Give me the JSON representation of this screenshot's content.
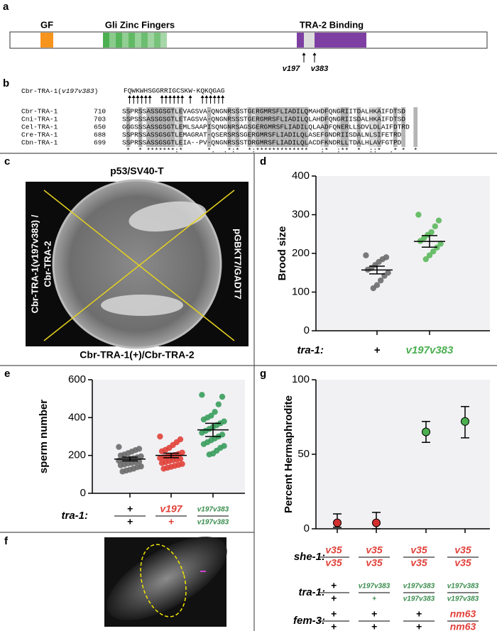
{
  "panel_labels": [
    "a",
    "b",
    "c",
    "d",
    "e",
    "f",
    "g"
  ],
  "domain_diagram": {
    "domains": [
      {
        "label": "GF",
        "color": "#f7941d"
      },
      {
        "label": "Gli Zinc Fingers",
        "color": "#4caf50"
      },
      {
        "label": "TRA-2 Binding",
        "color": "#7e3fa3"
      }
    ],
    "alleles": [
      "v197",
      "v383"
    ]
  },
  "alignment": {
    "mutant": {
      "prefix": "Cbr-TRA-1(",
      "allele": "v197v383",
      "suffix": ")",
      "sequence": "FQWKWHSGGRRIGCSKW-KQKQGAG"
    },
    "rows": [
      {
        "name": "Cbr-TRA-1",
        "start": "710",
        "sequence": "SSPRSSASSGSGTLEVAGSVA-QNGNRSSSTGERGMRSFLIADILQMAHDFQNGRIITDALHKAIFDTSD"
      },
      {
        "name": "Cni-TRA-1",
        "start": "703",
        "sequence": "SSPSSSASSGSGTLETAGSVA-QNGNRSSSTGERGMRSFLIADILQLAHDFQNGRIISDALHKAIFDTSD"
      },
      {
        "name": "Cel-TRA-1",
        "start": "650",
        "sequence": "GGGSSSASSGSGTLEMLSAAPISQNGNRSAGSGERGMRSFLIADILQLAADFQNERLLSDVLDLAIFDTRD"
      },
      {
        "name": "Cre-TRA-1",
        "start": "688",
        "sequence": "SSPRSSASSGSGTLEMAGRAT-QSERSRSSGERGMRSFLIADILQLASEFGNDRIISDALNLSIFETRD"
      },
      {
        "name": "Cbn-TRA-1",
        "start": "699",
        "sequence": "SSPRSSASSGSGTLEIA--PV-QNGNRSSSTDRGMRSFLIADILQLACDFKNDRLLTDALHLAVFGTPD"
      }
    ],
    "consensus": " *  * *******:*      *.  .*:*  *:*************   :*  :**  *  ::*  .* *  *"
  },
  "plate": {
    "top": "p53/SV40-T",
    "bottom": "Cbr-TRA-1(+)/Cbr-TRA-2",
    "left": [
      "Cbr-TRA-1(v197v383) /",
      "Cbr-TRA-2"
    ],
    "right": "pGBKT7/GADT7"
  },
  "chart_data": [
    {
      "type": "dotplot",
      "ylabel": "Brood size",
      "ylim": [
        0,
        400
      ],
      "yticks": [
        0,
        100,
        200,
        300,
        400
      ],
      "category_title": "tra-1:",
      "categories": [
        "+",
        "v197v383"
      ],
      "category_colors": [
        "#000000",
        "#4caf50"
      ],
      "groups": [
        {
          "color": "#6b6b6b",
          "values": [
            195,
            190,
            185,
            178,
            170,
            162,
            158,
            150,
            142,
            130,
            118,
            110
          ],
          "mean": 157,
          "error": 10
        },
        {
          "color": "#5cb85c",
          "values": [
            300,
            285,
            270,
            255,
            248,
            240,
            232,
            225,
            215,
            205,
            195,
            185
          ],
          "mean": 231,
          "error": 15
        }
      ]
    },
    {
      "type": "dotplot",
      "ylabel": "sperm number",
      "ylim": [
        0,
        600
      ],
      "yticks": [
        0,
        200,
        400,
        600
      ],
      "genotype_rows": [
        {
          "label": "tra-1:",
          "alleles": [
            {
              "top": "+",
              "bottom": "+",
              "color": "#000000"
            },
            {
              "top": "v197",
              "bottom": "+",
              "color": "#e0413a"
            },
            {
              "top": "v197v383",
              "bottom": "v197v383",
              "color": "#3a8d4d"
            }
          ]
        }
      ],
      "groups": [
        {
          "color": "#6b6b6b",
          "values": [
            245,
            235,
            228,
            220,
            212,
            205,
            200,
            195,
            190,
            185,
            182,
            178,
            175,
            172,
            168,
            165,
            160,
            158,
            152,
            148,
            142,
            138,
            130,
            125,
            120,
            115
          ],
          "mean": 181,
          "error": 10
        },
        {
          "color": "#e0413a",
          "values": [
            300,
            285,
            270,
            255,
            240,
            230,
            222,
            215,
            208,
            202,
            198,
            195,
            190,
            186,
            182,
            178,
            175,
            170,
            165,
            160,
            155,
            150,
            145,
            140,
            135,
            130
          ],
          "mean": 200,
          "error": 12
        },
        {
          "color": "#3a9d5d",
          "values": [
            520,
            510,
            470,
            430,
            410,
            400,
            390,
            380,
            370,
            360,
            350,
            340,
            330,
            320,
            310,
            300,
            290,
            280,
            270,
            260,
            250,
            240,
            225,
            210,
            205
          ],
          "mean": 335,
          "error": 35
        }
      ]
    },
    {
      "type": "errorpoint",
      "ylabel": "Percent Hermaphrodite",
      "ylim": [
        0,
        100
      ],
      "yticks": [
        0,
        50,
        100
      ],
      "values": [
        4,
        4,
        65,
        72
      ],
      "error_low": [
        1,
        0,
        58,
        61
      ],
      "error_high": [
        10,
        11,
        72,
        82
      ],
      "colors": [
        "#d32f2f",
        "#d32f2f",
        "#4caf50",
        "#4caf50"
      ],
      "genotype_rows": [
        {
          "label": "she-1:",
          "alleles": [
            {
              "top": "v35",
              "bottom": "v35",
              "color": "#e0413a"
            },
            {
              "top": "v35",
              "bottom": "v35",
              "color": "#e0413a"
            },
            {
              "top": "v35",
              "bottom": "v35",
              "color": "#e0413a"
            },
            {
              "top": "v35",
              "bottom": "v35",
              "color": "#e0413a"
            }
          ]
        },
        {
          "label": "tra-1:",
          "alleles": [
            {
              "top": "+",
              "bottom": "+",
              "color": "#000000"
            },
            {
              "top": "v197v383",
              "bottom": "+",
              "color": "#3a8d4d"
            },
            {
              "top": "v197v383",
              "bottom": "v197v383",
              "color": "#3a8d4d"
            },
            {
              "top": "v197v383",
              "bottom": "v197v383",
              "color": "#3a8d4d"
            }
          ]
        },
        {
          "label": "fem-3:",
          "alleles": [
            {
              "top": "+",
              "bottom": "+",
              "color": "#000000"
            },
            {
              "top": "+",
              "bottom": "+",
              "color": "#000000"
            },
            {
              "top": "+",
              "bottom": "+",
              "color": "#000000"
            },
            {
              "top": "nm63",
              "bottom": "nm63",
              "color": "#e0413a"
            }
          ]
        }
      ]
    }
  ]
}
